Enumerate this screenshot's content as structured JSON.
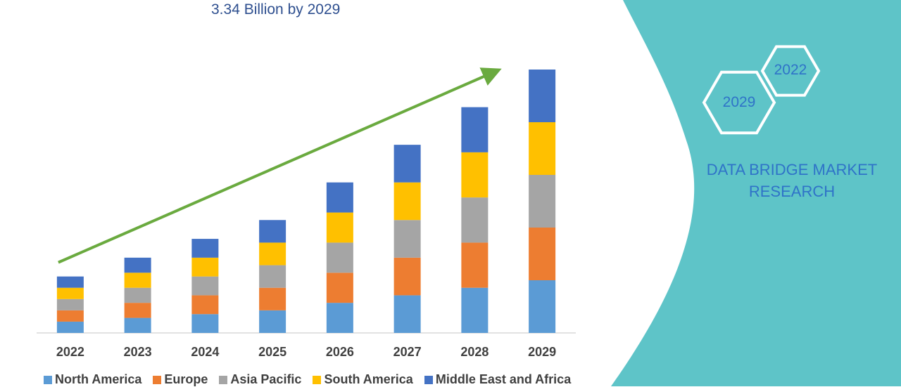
{
  "headline": "3.34 Billion by 2029",
  "panel": {
    "title_line1": "DATA BRIDGE MARKET",
    "title_line2": "RESEARCH",
    "hex_labels": [
      "2022",
      "2029"
    ]
  },
  "colors": {
    "panel": "#5ec4c8",
    "trend_arrow": "#6aaa3f",
    "axis": "#d9d9d9",
    "tick_text": "#404040",
    "hexagon": "#ffffff"
  },
  "chart_data": {
    "type": "bar",
    "stacked": true,
    "categories": [
      "2022",
      "2023",
      "2024",
      "2025",
      "2026",
      "2027",
      "2028",
      "2029"
    ],
    "series": [
      {
        "name": "North America",
        "color": "#5b9bd5",
        "values": [
          3.0,
          4.0,
          5.0,
          6.0,
          8.0,
          10.0,
          12.0,
          14.0
        ]
      },
      {
        "name": "Europe",
        "color": "#ed7d31",
        "values": [
          3.0,
          4.0,
          5.0,
          6.0,
          8.0,
          10.0,
          12.0,
          14.0
        ]
      },
      {
        "name": "Asia Pacific",
        "color": "#a5a5a5",
        "values": [
          3.0,
          4.0,
          5.0,
          6.0,
          8.0,
          10.0,
          12.0,
          14.0
        ]
      },
      {
        "name": "South America",
        "color": "#ffc000",
        "values": [
          3.0,
          4.0,
          5.0,
          6.0,
          8.0,
          10.0,
          12.0,
          14.0
        ]
      },
      {
        "name": "Middle East and Africa",
        "color": "#4472c4",
        "values": [
          3.0,
          4.0,
          5.0,
          6.0,
          8.0,
          10.0,
          12.0,
          14.0
        ]
      }
    ],
    "title": "",
    "xlabel": "",
    "ylabel": "",
    "ylim": [
      0,
      70
    ],
    "grid": false,
    "legend_position": "bottom",
    "trend_arrow": true
  }
}
